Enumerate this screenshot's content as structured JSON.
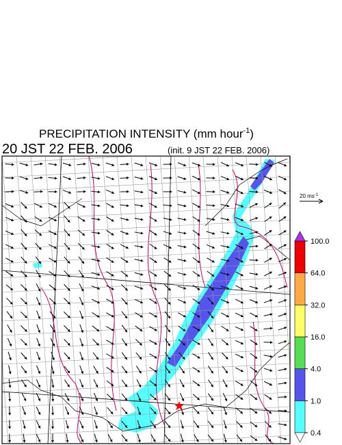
{
  "header": {
    "title": "PRECIPITATION INTENSITY (mm hour",
    "title_superscript": "-1",
    "title_end": ")",
    "valid_time": "20 JST 22 FEB. 2006",
    "init_time": "(init. 9 JST 22 FEB. 2006)"
  },
  "wind_scale": {
    "label": "20 ms",
    "label_superscript": "-1"
  },
  "colorbar": {
    "levels": [
      {
        "value": 0.4,
        "label": "0.4"
      },
      {
        "value": 1,
        "label": "1.0"
      },
      {
        "value": 4,
        "label": "4.0"
      },
      {
        "value": 16,
        "label": "16.0"
      },
      {
        "value": 32,
        "label": "32.0"
      },
      {
        "value": 64,
        "label": "64.0"
      },
      {
        "value": 100,
        "label": "100.0"
      }
    ],
    "colors": [
      "#55ffff",
      "#5555ee",
      "#55dd55",
      "#ffff66",
      "#ffaa44",
      "#ee0000"
    ],
    "over_color": "#aa33ee",
    "under_color": "#ffffff"
  }
}
